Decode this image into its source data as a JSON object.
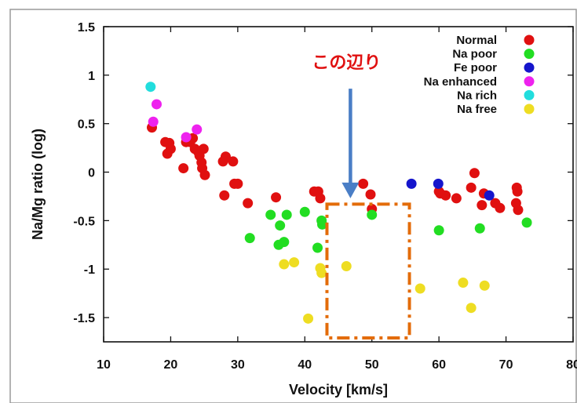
{
  "chart_data": {
    "type": "scatter",
    "title": "",
    "xlabel": "Velocity [km/s]",
    "ylabel": "Na/Mg ratio (log)",
    "xlim": [
      10,
      80
    ],
    "ylim": [
      -1.75,
      1.5
    ],
    "x_ticks": [
      10,
      20,
      30,
      40,
      50,
      60,
      70,
      80
    ],
    "y_ticks": [
      -1.5,
      -1,
      -0.5,
      0,
      0.5,
      1,
      1.5
    ],
    "x_tick_labels": [
      "10",
      "20",
      "30",
      "40",
      "50",
      "60",
      "70",
      "80"
    ],
    "y_tick_labels": [
      "-1.5",
      "-1",
      "-0.5",
      "0",
      "0.5",
      "1",
      "1.5"
    ],
    "grid": false,
    "legend_position": "top-right",
    "series": [
      {
        "name": "Normal",
        "color": "#e01010",
        "points": [
          [
            17.2,
            0.46
          ],
          [
            19.2,
            0.31
          ],
          [
            19.8,
            0.3
          ],
          [
            19.5,
            0.19
          ],
          [
            20.0,
            0.24
          ],
          [
            21.9,
            0.04
          ],
          [
            22.3,
            0.31
          ],
          [
            22.9,
            0.31
          ],
          [
            23.3,
            0.35
          ],
          [
            23.6,
            0.24
          ],
          [
            24.1,
            0.21
          ],
          [
            24.3,
            0.17
          ],
          [
            24.6,
            0.1
          ],
          [
            24.9,
            0.24
          ],
          [
            24.7,
            0.04
          ],
          [
            25.1,
            -0.03
          ],
          [
            27.8,
            0.11
          ],
          [
            28.2,
            0.16
          ],
          [
            29.3,
            0.11
          ],
          [
            28.0,
            -0.24
          ],
          [
            29.5,
            -0.12
          ],
          [
            30.0,
            -0.12
          ],
          [
            31.5,
            -0.32
          ],
          [
            35.7,
            -0.26
          ],
          [
            41.4,
            -0.2
          ],
          [
            42.0,
            -0.2
          ],
          [
            42.3,
            -0.27
          ],
          [
            48.7,
            -0.12
          ],
          [
            49.8,
            -0.23
          ],
          [
            50.0,
            -0.38
          ],
          [
            60.0,
            -0.2
          ],
          [
            60.2,
            -0.22
          ],
          [
            61.0,
            -0.24
          ],
          [
            62.6,
            -0.27
          ],
          [
            64.8,
            -0.16
          ],
          [
            65.3,
            -0.01
          ],
          [
            66.4,
            -0.34
          ],
          [
            66.7,
            -0.22
          ],
          [
            68.4,
            -0.32
          ],
          [
            69.1,
            -0.37
          ],
          [
            71.6,
            -0.16
          ],
          [
            71.7,
            -0.2
          ],
          [
            71.5,
            -0.32
          ],
          [
            71.8,
            -0.39
          ]
        ]
      },
      {
        "name": "Na poor",
        "color": "#22dd22",
        "points": [
          [
            31.8,
            -0.68
          ],
          [
            34.9,
            -0.44
          ],
          [
            36.3,
            -0.55
          ],
          [
            36.1,
            -0.75
          ],
          [
            36.9,
            -0.72
          ],
          [
            37.3,
            -0.44
          ],
          [
            40.0,
            -0.41
          ],
          [
            41.9,
            -0.78
          ],
          [
            42.5,
            -0.5
          ],
          [
            42.6,
            -0.54
          ],
          [
            50.0,
            -0.44
          ],
          [
            60.0,
            -0.6
          ],
          [
            66.1,
            -0.58
          ],
          [
            73.1,
            -0.52
          ]
        ]
      },
      {
        "name": "Fe poor",
        "color": "#1515cc",
        "points": [
          [
            55.9,
            -0.12
          ],
          [
            59.9,
            -0.12
          ],
          [
            67.5,
            -0.24
          ]
        ]
      },
      {
        "name": "Na enhanced",
        "color": "#ee22ee",
        "points": [
          [
            17.9,
            0.7
          ],
          [
            17.4,
            0.52
          ],
          [
            22.3,
            0.36
          ],
          [
            23.9,
            0.44
          ]
        ]
      },
      {
        "name": "Na rich",
        "color": "#22dddd",
        "points": [
          [
            17.0,
            0.88
          ]
        ]
      },
      {
        "name": "Na free",
        "color": "#eedd22",
        "points": [
          [
            36.9,
            -0.95
          ],
          [
            38.4,
            -0.93
          ],
          [
            42.3,
            -0.99
          ],
          [
            42.5,
            -1.04
          ],
          [
            46.2,
            -0.97
          ],
          [
            40.5,
            -1.51
          ],
          [
            57.2,
            -1.2
          ],
          [
            63.6,
            -1.14
          ],
          [
            66.8,
            -1.17
          ],
          [
            64.8,
            -1.4
          ]
        ]
      }
    ],
    "annotation": {
      "text": "この辺り",
      "color": "#e01010",
      "arrow_color": "#4a7ec6",
      "arrow_from": [
        46.8,
        0.86
      ],
      "arrow_to": [
        46.8,
        -0.27
      ],
      "box_color": "#e36c0a",
      "box_x": [
        43.3,
        55.6
      ],
      "box_y": [
        -1.71,
        -0.33
      ]
    }
  }
}
